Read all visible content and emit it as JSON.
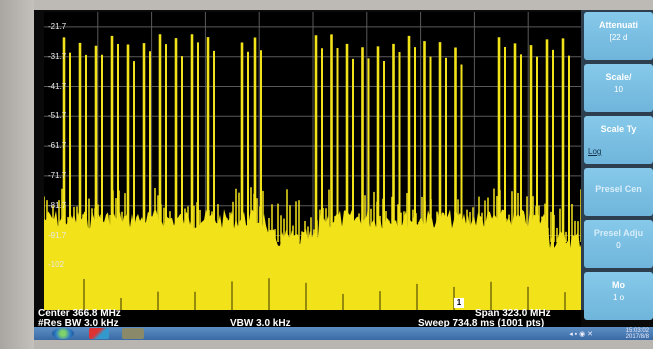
{
  "analyzer": {
    "y_ticks": [
      "-21.7",
      "-31.7",
      "-41.7",
      "-51.7",
      "-61.7",
      "-71.7",
      "-81.7",
      "-91.7",
      "-102"
    ],
    "center_label": "Center 366.8 MHz",
    "res_bw_label": "#Res BW 3.0 kHz",
    "vbw_label": "VBW 3.0 kHz",
    "span_label": "Span 323.0 MHz",
    "sweep_label": "Sweep  734.8 ms (1001 pts)",
    "marker_number": "1",
    "trace_color": "#f2e21a",
    "grid_color": "#5a5a5a"
  },
  "softkeys": [
    {
      "label": "Attenuati",
      "sub": "[22 d"
    },
    {
      "label": "Scale/",
      "sub": "10"
    },
    {
      "label": "Scale Ty",
      "sub": "Log"
    },
    {
      "label": "Presel Cen",
      "sub": ""
    },
    {
      "label": "Presel Adju",
      "sub": "0"
    },
    {
      "label": "Mo",
      "sub": "1 o"
    }
  ],
  "taskbar": {
    "clock_time": "15:03:02",
    "clock_date": "2017/8/8"
  }
}
